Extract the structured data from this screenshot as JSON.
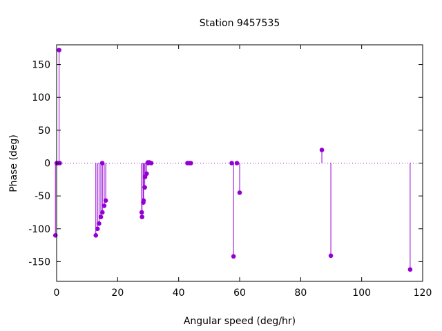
{
  "chart_data": {
    "type": "scatter",
    "style": "impulses-with-points",
    "title": "Station 9457535",
    "xlabel": "Angular speed (deg/hr)",
    "ylabel": "Phase (deg)",
    "xlim": [
      0,
      120
    ],
    "ylim": [
      -180,
      180
    ],
    "xticks": [
      0,
      20,
      40,
      60,
      80,
      100,
      120
    ],
    "yticks": [
      -150,
      -100,
      -50,
      0,
      50,
      100,
      150
    ],
    "zero_line": true,
    "grid": false,
    "legend": "none",
    "color": "#9400d3",
    "points": [
      {
        "x": -0.4,
        "y": -110
      },
      {
        "x": 0.04,
        "y": 0
      },
      {
        "x": 0.08,
        "y": 0
      },
      {
        "x": 0.5,
        "y": 0
      },
      {
        "x": 0.8,
        "y": 172
      },
      {
        "x": 1.0,
        "y": 0
      },
      {
        "x": 12.85,
        "y": -110
      },
      {
        "x": 13.4,
        "y": -100
      },
      {
        "x": 13.9,
        "y": -92
      },
      {
        "x": 14.5,
        "y": -82
      },
      {
        "x": 14.96,
        "y": 0
      },
      {
        "x": 15.0,
        "y": -75
      },
      {
        "x": 15.6,
        "y": -65
      },
      {
        "x": 16.1,
        "y": -57
      },
      {
        "x": 27.9,
        "y": -75
      },
      {
        "x": 28.0,
        "y": -82
      },
      {
        "x": 28.4,
        "y": -60
      },
      {
        "x": 28.5,
        "y": -57
      },
      {
        "x": 28.9,
        "y": -37
      },
      {
        "x": 29.0,
        "y": -21
      },
      {
        "x": 29.5,
        "y": -16
      },
      {
        "x": 29.9,
        "y": 1
      },
      {
        "x": 30.0,
        "y": 0
      },
      {
        "x": 30.4,
        "y": 1
      },
      {
        "x": 31.0,
        "y": 0
      },
      {
        "x": 42.9,
        "y": 0
      },
      {
        "x": 43.5,
        "y": 0
      },
      {
        "x": 44.0,
        "y": 0
      },
      {
        "x": 57.4,
        "y": 0
      },
      {
        "x": 58.0,
        "y": -142
      },
      {
        "x": 59.1,
        "y": 0
      },
      {
        "x": 60.0,
        "y": -45
      },
      {
        "x": 86.95,
        "y": 20
      },
      {
        "x": 89.9,
        "y": -141
      },
      {
        "x": 115.9,
        "y": -162
      }
    ]
  }
}
